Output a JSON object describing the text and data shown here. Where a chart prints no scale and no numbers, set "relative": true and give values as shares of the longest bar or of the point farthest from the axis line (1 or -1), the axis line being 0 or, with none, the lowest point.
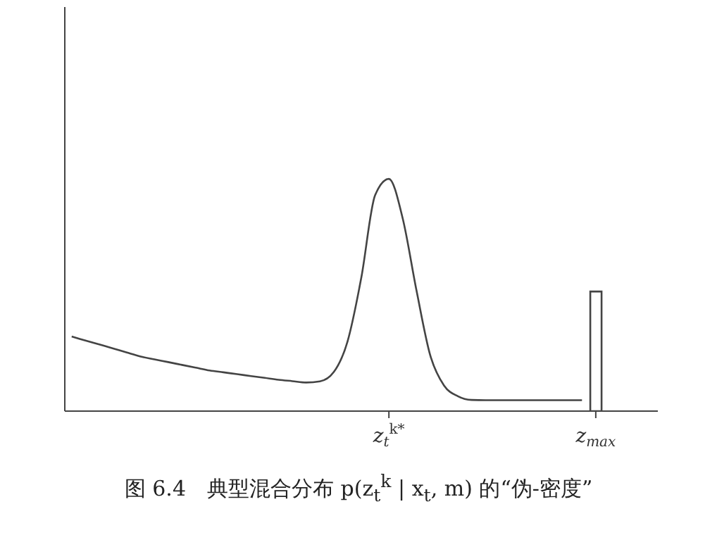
{
  "chart_data": {
    "type": "line",
    "title": "图 6.4　典型混合分布 p(z$_{t}$$^{k}$ | x$_{t}$, m) 的“伪-密度”",
    "relative": true,
    "tick_labels": "x",
    "marker": "none",
    "line_style": "solid",
    "categories": [
      null,
      null,
      null,
      null,
      null,
      null,
      null,
      null,
      null,
      null,
      null,
      null,
      null,
      null,
      null,
      null,
      null,
      null,
      null,
      null,
      null,
      null,
      null,
      "z$_{t}$$^{k*}$",
      null,
      null,
      null,
      null,
      null,
      null,
      null,
      null,
      null,
      null,
      null,
      null,
      null,
      null,
      "z$_{max}$",
      null,
      null,
      null,
      null
    ],
    "series": [
      {
        "color": "#444444",
        "values": [
          0.321,
          0.304,
          0.287,
          0.27,
          0.252,
          0.235,
          0.223,
          0.211,
          0.199,
          0.187,
          0.175,
          0.167,
          0.159,
          0.151,
          0.143,
          0.135,
          0.129,
          0.123,
          0.128,
          0.168,
          0.3,
          0.575,
          0.93,
          1,
          0.83,
          0.52,
          0.24,
          0.11,
          0.064,
          0.048,
          0.047,
          0.047,
          0.047,
          0.047,
          0.047,
          0.047,
          0.047,
          0.047,
          null,
          null,
          null,
          null,
          null
        ]
      },
      {
        "type": "bar",
        "color": "#444444",
        "values": [
          null,
          null,
          null,
          null,
          null,
          null,
          null,
          null,
          null,
          null,
          null,
          null,
          null,
          null,
          null,
          null,
          null,
          null,
          null,
          null,
          null,
          null,
          null,
          null,
          null,
          null,
          null,
          null,
          null,
          null,
          null,
          null,
          null,
          null,
          null,
          null,
          null,
          null,
          0.515,
          null,
          null,
          null,
          null
        ]
      }
    ]
  }
}
